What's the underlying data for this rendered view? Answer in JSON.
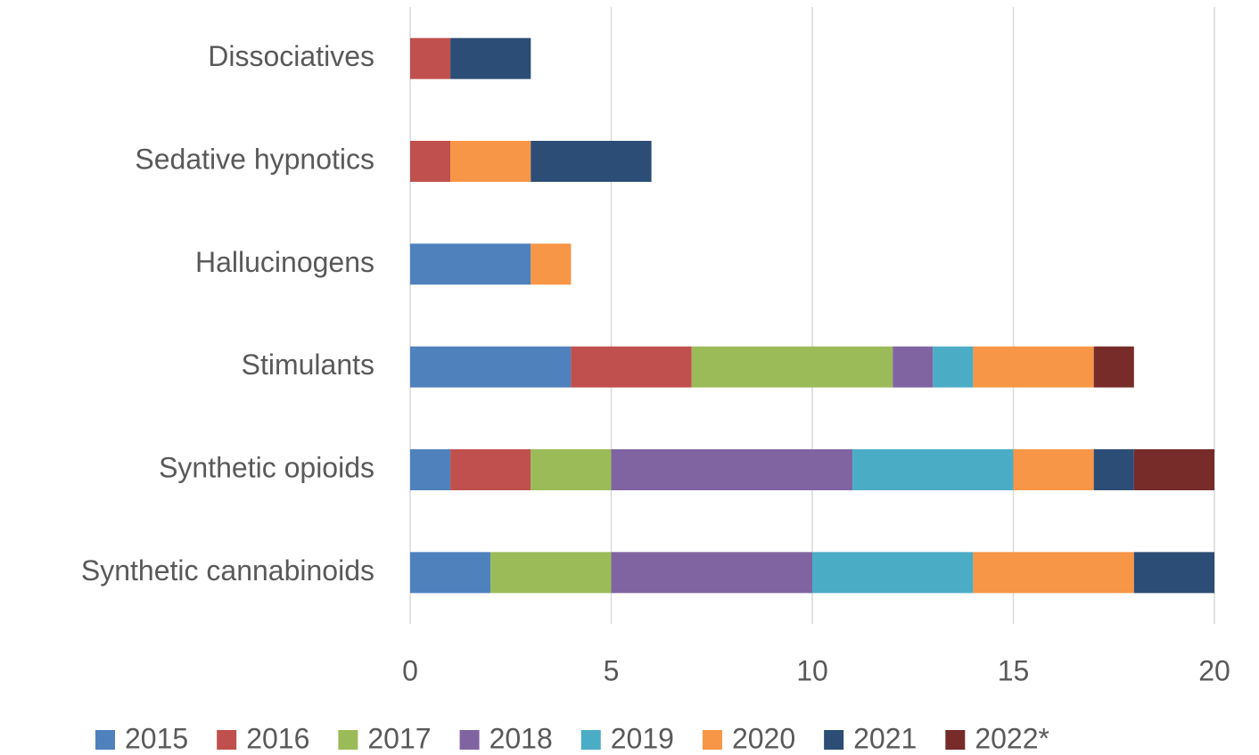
{
  "chart_data": {
    "type": "stacked_barh",
    "categories": [
      "Dissociatives",
      "Sedative hypnotics",
      "Hallucinogens",
      "Stimulants",
      "Synthetic opioids",
      "Synthetic cannabinoids"
    ],
    "series": [
      {
        "name": "2015",
        "color": "#4f81bd",
        "values": [
          0,
          0,
          3,
          4,
          1,
          2
        ]
      },
      {
        "name": "2016",
        "color": "#c0504d",
        "values": [
          1,
          1,
          0,
          3,
          2,
          0
        ]
      },
      {
        "name": "2017",
        "color": "#9bbb59",
        "values": [
          0,
          0,
          0,
          5,
          2,
          3
        ]
      },
      {
        "name": "2018",
        "color": "#8064a2",
        "values": [
          0,
          0,
          0,
          1,
          6,
          5
        ]
      },
      {
        "name": "2019",
        "color": "#4bacc6",
        "values": [
          0,
          0,
          0,
          1,
          4,
          4
        ]
      },
      {
        "name": "2020",
        "color": "#f79646",
        "values": [
          0,
          2,
          1,
          3,
          2,
          4
        ]
      },
      {
        "name": "2021",
        "color": "#2c4d75",
        "values": [
          2,
          3,
          0,
          0,
          1,
          2
        ]
      },
      {
        "name": "2022*",
        "color": "#772c2a",
        "values": [
          0,
          0,
          0,
          1,
          2,
          0
        ]
      }
    ],
    "xlim": [
      0,
      20
    ],
    "xticks": [
      0,
      5,
      10,
      15,
      20
    ],
    "grid": true,
    "legend": "bottom"
  }
}
